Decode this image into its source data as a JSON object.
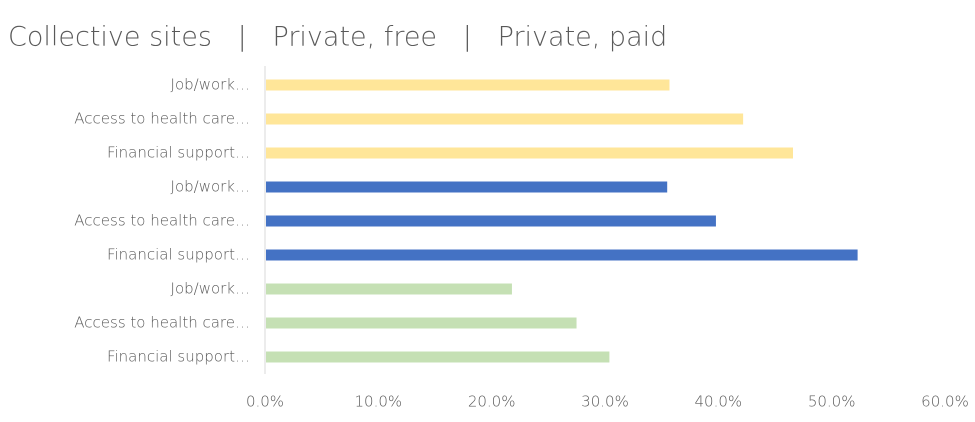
{
  "chart_data": {
    "type": "hbar",
    "title": "Collective sites   |   Private, free   |   Private, paid",
    "categories": [
      "Job/work…",
      "Access to health care…",
      "Financial support…",
      "Job/work…",
      "Access to health care…",
      "Financial support…",
      "Job/work…",
      "Access to health care…",
      "Financial support…"
    ],
    "values": [
      35.6,
      42.1,
      46.5,
      35.4,
      39.7,
      52.2,
      21.7,
      27.4,
      30.3
    ],
    "colors": [
      "#ffe699",
      "#ffe699",
      "#ffe699",
      "#4472c4",
      "#4472c4",
      "#4472c4",
      "#c5e0b4",
      "#c5e0b4",
      "#c5e0b4"
    ],
    "xlim": [
      0,
      60
    ],
    "xticks": [
      {
        "value": 0,
        "label": "0.0%"
      },
      {
        "value": 10,
        "label": "10.0%"
      },
      {
        "value": 20,
        "label": "20.0%"
      },
      {
        "value": 30,
        "label": "30.0%"
      },
      {
        "value": 40,
        "label": "40.0%"
      },
      {
        "value": 50,
        "label": "50.0%"
      },
      {
        "value": 60,
        "label": "60.0%"
      }
    ]
  }
}
